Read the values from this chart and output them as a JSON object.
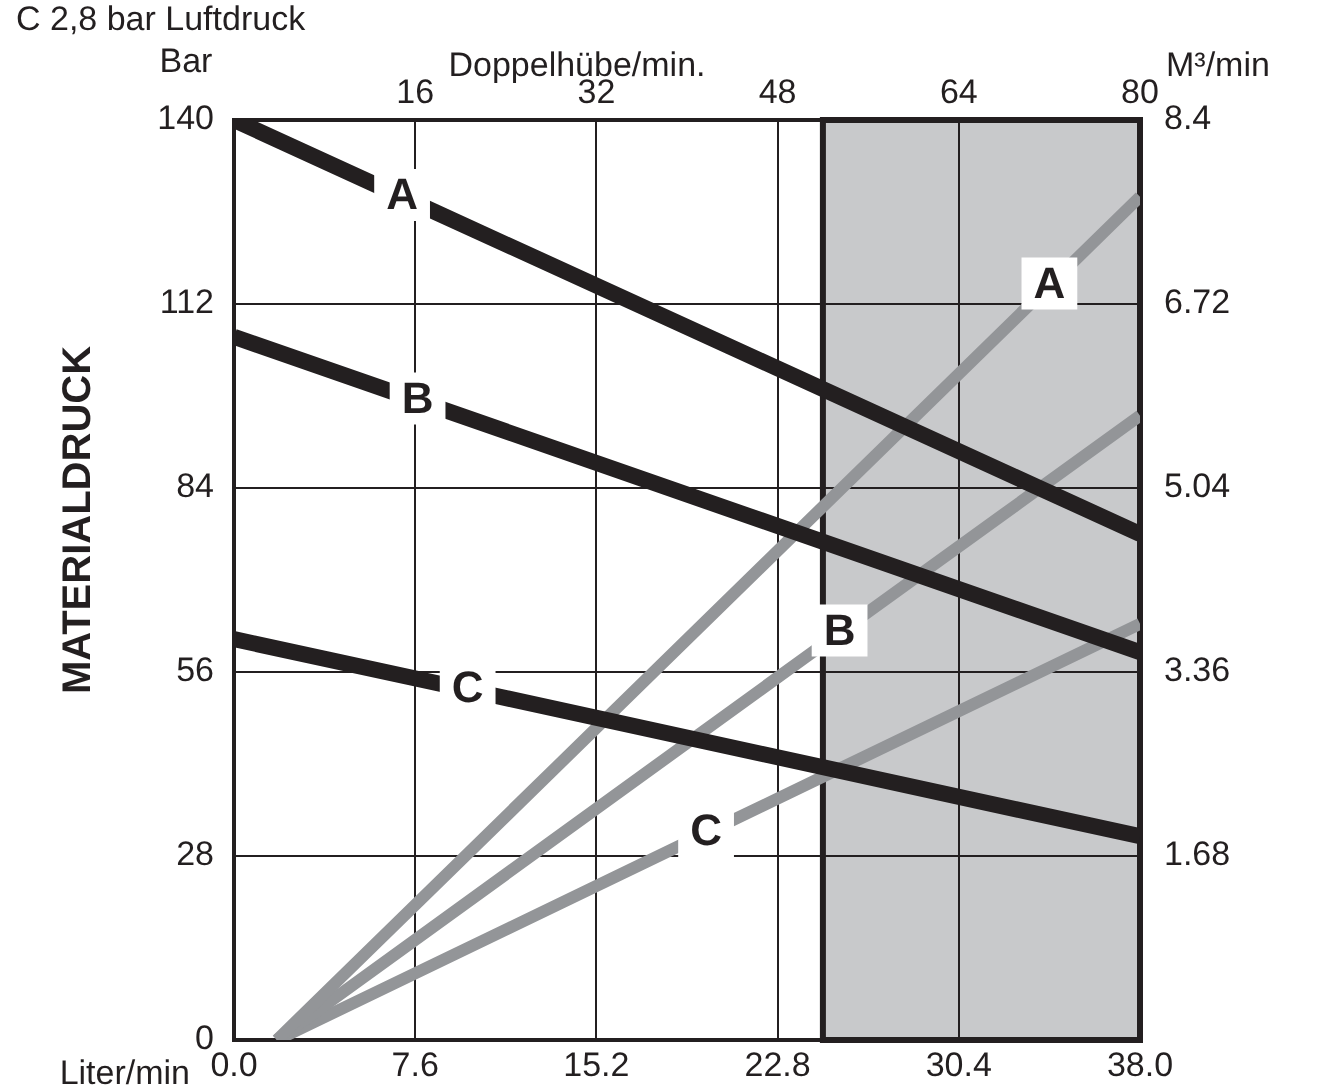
{
  "chart_data": {
    "type": "line",
    "title": "C 2,8 bar Luftdruck",
    "xlabel": "Liter/min",
    "ylabel": "MATERIALDRUCK",
    "y2label": "M³/min",
    "x2label": "Doppelhübe/min.",
    "annotations": [
      "Bar"
    ],
    "xlim": [
      0,
      38
    ],
    "xticks": [
      {
        "value": 0,
        "label": "0.0"
      },
      {
        "value": 7.6,
        "label": "7.6"
      },
      {
        "value": 15.2,
        "label": "15.2"
      },
      {
        "value": 22.8,
        "label": "22.8"
      },
      {
        "value": 30.4,
        "label": "30.4"
      },
      {
        "value": 38,
        "label": "38.0"
      }
    ],
    "x2lim": [
      0,
      80
    ],
    "x2ticks": [
      16,
      32,
      48,
      64,
      80
    ],
    "ylim": [
      0,
      140
    ],
    "yticks": [
      0,
      28,
      56,
      84,
      112,
      140
    ],
    "y2lim": [
      0,
      8.4
    ],
    "y2ticks": [
      1.68,
      3.36,
      5.04,
      6.72,
      8.4
    ],
    "grid": true,
    "legend": false,
    "marker": "none",
    "line_style": "solid",
    "bands": [
      {
        "axis": "x",
        "from": 24.7,
        "to": 38,
        "color": "#c8c9cb"
      }
    ],
    "series": [
      {
        "name": "A",
        "color": "#231f20",
        "x": [
          0,
          7.05,
          38
        ],
        "values": [
          140,
          128.3,
          77
        ]
      },
      {
        "name": "B",
        "color": "#231f20",
        "x": [
          0,
          7.7,
          38
        ],
        "values": [
          107,
          97.3,
          59
        ]
      },
      {
        "name": "C",
        "color": "#231f20",
        "x": [
          0,
          9.8,
          38
        ],
        "values": [
          61,
          53.3,
          31
        ]
      },
      {
        "name": "A",
        "color": "#939598",
        "axis": "y2",
        "x": [
          1.8,
          34.2,
          38
        ],
        "values": [
          0,
          6.89,
          7.7
        ]
      },
      {
        "name": "B",
        "color": "#939598",
        "axis": "y2",
        "x": [
          1.8,
          25.4,
          38
        ],
        "values": [
          0,
          3.72,
          5.7
        ]
      },
      {
        "name": "C",
        "color": "#939598",
        "axis": "y2",
        "x": [
          1.8,
          19.8,
          38
        ],
        "values": [
          0,
          1.89,
          3.8
        ]
      }
    ]
  }
}
